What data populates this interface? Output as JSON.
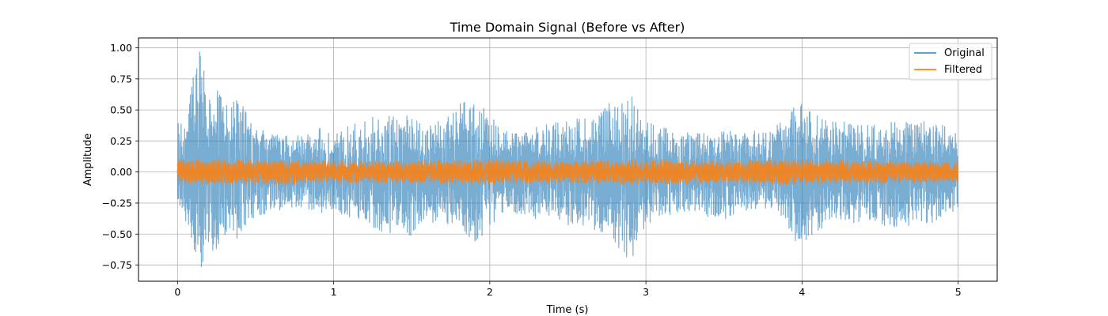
{
  "chart_data": {
    "type": "line",
    "title": "Time Domain Signal (Before vs After)",
    "xlabel": "Time (s)",
    "ylabel": "Amplitude",
    "xlim": [
      -0.25,
      5.25
    ],
    "ylim": [
      -0.88,
      1.08
    ],
    "xticks": [
      0,
      1,
      2,
      3,
      4,
      5
    ],
    "xtick_labels": [
      "0",
      "1",
      "2",
      "3",
      "4",
      "5"
    ],
    "yticks": [
      -0.75,
      -0.5,
      -0.25,
      0.0,
      0.25,
      0.5,
      0.75,
      1.0
    ],
    "ytick_labels": [
      "−0.75",
      "−0.50",
      "−0.25",
      "0.00",
      "0.25",
      "0.50",
      "0.75",
      "1.00"
    ],
    "grid": true,
    "legend": "top-right",
    "colors": {
      "original": "#1f77b4",
      "filtered": "#ff7f0e"
    },
    "series": [
      {
        "name": "Original",
        "color": "#1f77b4",
        "alpha": 0.6,
        "x_range": [
          0,
          5
        ],
        "envelope": {
          "t": [
            0.0,
            0.05,
            0.1,
            0.15,
            0.2,
            0.25,
            0.3,
            0.35,
            0.4,
            0.45,
            0.5,
            0.6,
            0.7,
            0.8,
            0.9,
            1.0,
            1.1,
            1.2,
            1.3,
            1.4,
            1.5,
            1.6,
            1.7,
            1.8,
            1.9,
            2.0,
            2.1,
            2.2,
            2.3,
            2.4,
            2.5,
            2.6,
            2.7,
            2.8,
            2.9,
            3.0,
            3.1,
            3.2,
            3.3,
            3.4,
            3.5,
            3.6,
            3.7,
            3.8,
            3.9,
            4.0,
            4.1,
            4.2,
            4.3,
            4.4,
            4.5,
            4.6,
            4.7,
            4.8,
            4.9,
            5.0
          ],
          "max": [
            0.42,
            0.35,
            0.85,
            1.0,
            0.72,
            0.75,
            0.55,
            0.58,
            0.6,
            0.45,
            0.35,
            0.32,
            0.3,
            0.3,
            0.36,
            0.32,
            0.38,
            0.42,
            0.5,
            0.45,
            0.46,
            0.38,
            0.42,
            0.55,
            0.58,
            0.48,
            0.34,
            0.32,
            0.36,
            0.4,
            0.42,
            0.44,
            0.5,
            0.58,
            0.63,
            0.42,
            0.36,
            0.35,
            0.32,
            0.34,
            0.36,
            0.3,
            0.34,
            0.32,
            0.46,
            0.58,
            0.46,
            0.42,
            0.4,
            0.38,
            0.38,
            0.42,
            0.4,
            0.42,
            0.38,
            0.3
          ],
          "min": [
            -0.3,
            -0.4,
            -0.65,
            -0.78,
            -0.65,
            -0.62,
            -0.52,
            -0.52,
            -0.58,
            -0.4,
            -0.36,
            -0.32,
            -0.3,
            -0.3,
            -0.34,
            -0.3,
            -0.38,
            -0.42,
            -0.48,
            -0.5,
            -0.52,
            -0.42,
            -0.4,
            -0.48,
            -0.58,
            -0.5,
            -0.34,
            -0.34,
            -0.38,
            -0.36,
            -0.44,
            -0.46,
            -0.48,
            -0.58,
            -0.77,
            -0.44,
            -0.36,
            -0.34,
            -0.34,
            -0.36,
            -0.4,
            -0.3,
            -0.32,
            -0.3,
            -0.46,
            -0.65,
            -0.48,
            -0.42,
            -0.42,
            -0.4,
            -0.44,
            -0.48,
            -0.42,
            -0.44,
            -0.38,
            -0.3
          ]
        }
      },
      {
        "name": "Filtered",
        "color": "#ff7f0e",
        "alpha": 0.85,
        "x_range": [
          0,
          5
        ],
        "envelope": {
          "t": [
            0.0,
            0.5,
            1.0,
            1.5,
            2.0,
            2.5,
            3.0,
            3.5,
            4.0,
            4.5,
            5.0
          ],
          "max": [
            0.1,
            0.1,
            0.09,
            0.09,
            0.1,
            0.09,
            0.1,
            0.09,
            0.1,
            0.09,
            0.08
          ],
          "min": [
            -0.09,
            -0.1,
            -0.09,
            -0.09,
            -0.1,
            -0.09,
            -0.1,
            -0.09,
            -0.1,
            -0.09,
            -0.08
          ]
        }
      }
    ]
  }
}
